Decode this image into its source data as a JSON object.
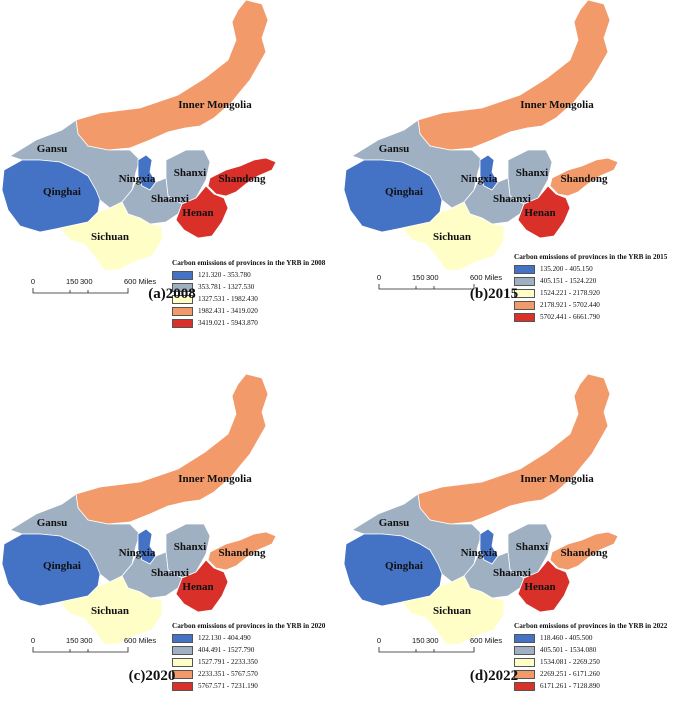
{
  "map_data": {
    "classes_colors": [
      "#4472c4",
      "#9fb0c2",
      "#fffec6",
      "#f39a6b",
      "#d9302a"
    ],
    "provinces": [
      "Inner Mongolia",
      "Gansu",
      "Ningxia",
      "Shanxi",
      "Qinghai",
      "Shaanxi",
      "Shandong",
      "Henan",
      "Sichuan"
    ],
    "panels": [
      {
        "caption": "(a)2008",
        "legend_title": "Carbon emissions of provinces in the YRB in 2008",
        "legend_items": [
          "121.320 - 353.780",
          "353.781 - 1327.530",
          "1327.531 - 1982.430",
          "1982.431 - 3419.020",
          "3419.021 - 5943.870"
        ],
        "province_class": {
          "Inner Mongolia": 3,
          "Gansu": 1,
          "Ningxia": 0,
          "Shanxi": 1,
          "Qinghai": 0,
          "Shaanxi": 1,
          "Shandong": 4,
          "Henan": 4,
          "Sichuan": 2
        }
      },
      {
        "caption": "(b)2015",
        "legend_title": "Carbon emissions of provinces in the YRB in 2015",
        "legend_items": [
          "135.200 - 405.150",
          "405.151 - 1524.220",
          "1524.221 - 2178.920",
          "2178.921 - 5702.440",
          "5702.441 - 6661.790"
        ],
        "province_class": {
          "Inner Mongolia": 3,
          "Gansu": 1,
          "Ningxia": 0,
          "Shanxi": 1,
          "Qinghai": 0,
          "Shaanxi": 1,
          "Shandong": 3,
          "Henan": 4,
          "Sichuan": 2
        }
      },
      {
        "caption": "(c)2020",
        "legend_title": "Carbon emissions of provinces in the YRB in 2020",
        "legend_items": [
          "122.130 - 404.490",
          "404.491 - 1527.790",
          "1527.791 - 2233.350",
          "2233.351 - 5767.570",
          "5767.571 - 7231.190"
        ],
        "province_class": {
          "Inner Mongolia": 3,
          "Gansu": 1,
          "Ningxia": 0,
          "Shanxi": 1,
          "Qinghai": 0,
          "Shaanxi": 1,
          "Shandong": 3,
          "Henan": 4,
          "Sichuan": 2
        }
      },
      {
        "caption": "(d)2022",
        "legend_title": "Carbon emissions of provinces in the YRB in 2022",
        "legend_items": [
          "118.460 - 405.500",
          "405.501 - 1534.080",
          "1534.081 - 2269.250",
          "2269.251 - 6171.260",
          "6171.261 - 7128.890"
        ],
        "province_class": {
          "Inner Mongolia": 3,
          "Gansu": 1,
          "Ningxia": 0,
          "Shanxi": 1,
          "Qinghai": 0,
          "Shaanxi": 1,
          "Shandong": 3,
          "Henan": 4,
          "Sichuan": 2
        }
      }
    ],
    "scale_bar": {
      "ticks": [
        "0",
        "150",
        "300",
        "600 Miles"
      ]
    }
  }
}
